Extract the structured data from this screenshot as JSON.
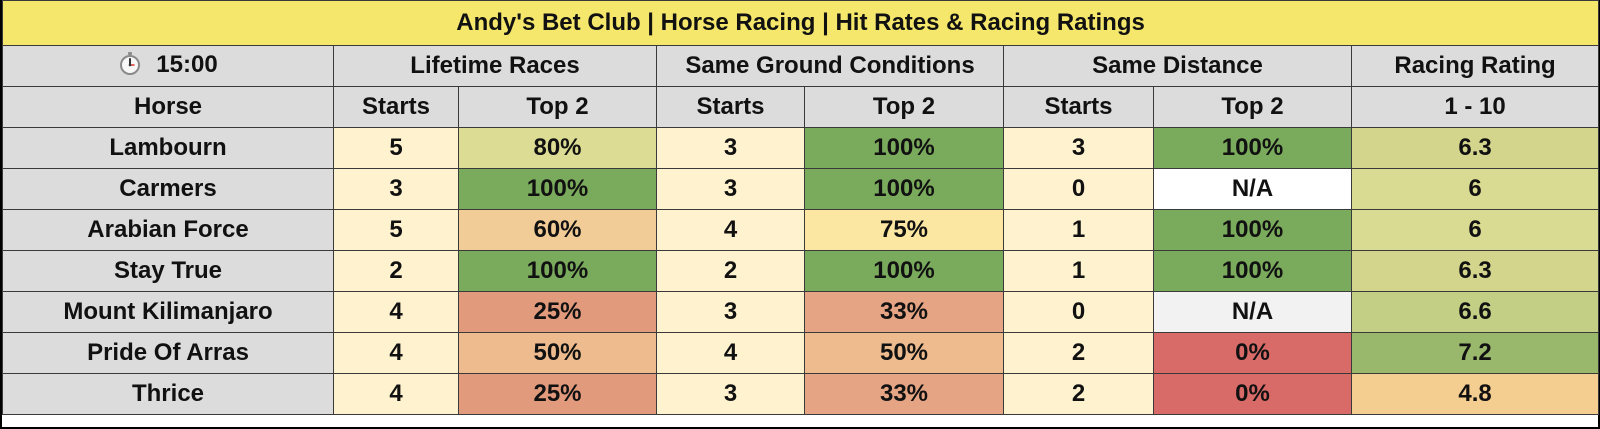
{
  "title": "Andy's Bet Club | Horse Racing | Hit Rates & Racing Ratings",
  "race_time": "15:00",
  "race_time_icon": "stopwatch-icon",
  "group_headers": {
    "lifetime": "Lifetime Races",
    "ground": "Same Ground Conditions",
    "distance": "Same Distance",
    "rating": "Racing Rating"
  },
  "sub_headers": {
    "horse": "Horse",
    "starts": "Starts",
    "top2": "Top 2",
    "rating_range": "1 - 10"
  },
  "rows": [
    {
      "horse": "Lambourn",
      "lt_starts": "5",
      "lt_top2": "80%",
      "gr_starts": "3",
      "gr_top2": "100%",
      "di_starts": "3",
      "di_top2": "100%",
      "rating": "6.3"
    },
    {
      "horse": "Carmers",
      "lt_starts": "3",
      "lt_top2": "100%",
      "gr_starts": "3",
      "gr_top2": "100%",
      "di_starts": "0",
      "di_top2": "N/A",
      "rating": "6"
    },
    {
      "horse": "Arabian Force",
      "lt_starts": "5",
      "lt_top2": "60%",
      "gr_starts": "4",
      "gr_top2": "75%",
      "di_starts": "1",
      "di_top2": "100%",
      "rating": "6"
    },
    {
      "horse": "Stay True",
      "lt_starts": "2",
      "lt_top2": "100%",
      "gr_starts": "2",
      "gr_top2": "100%",
      "di_starts": "1",
      "di_top2": "100%",
      "rating": "6.3"
    },
    {
      "horse": "Mount Kilimanjaro",
      "lt_starts": "4",
      "lt_top2": "25%",
      "gr_starts": "3",
      "gr_top2": "33%",
      "di_starts": "0",
      "di_top2": "N/A",
      "rating": "6.6"
    },
    {
      "horse": "Pride Of Arras",
      "lt_starts": "4",
      "lt_top2": "50%",
      "gr_starts": "4",
      "gr_top2": "50%",
      "di_starts": "2",
      "di_top2": "0%",
      "rating": "7.2"
    },
    {
      "horse": "Thrice",
      "lt_starts": "4",
      "lt_top2": "25%",
      "gr_starts": "3",
      "gr_top2": "33%",
      "di_starts": "2",
      "di_top2": "0%",
      "rating": "4.8"
    }
  ],
  "cell_colors": [
    {
      "lt_top2": "#dcdc94",
      "gr_top2": "#7aaa5c",
      "di_top2": "#7aaa5c",
      "rating": "#d4d58c"
    },
    {
      "lt_top2": "#7aaa5c",
      "gr_top2": "#7aaa5c",
      "di_top2": "#ffffff",
      "rating": "#dadb93"
    },
    {
      "lt_top2": "#f2cc96",
      "gr_top2": "#fbe6a2",
      "di_top2": "#7aaa5c",
      "rating": "#dadb93"
    },
    {
      "lt_top2": "#7aaa5c",
      "gr_top2": "#7aaa5c",
      "di_top2": "#7aaa5c",
      "rating": "#d4d58c"
    },
    {
      "lt_top2": "#e29a7d",
      "gr_top2": "#e5a483",
      "di_top2": "#f2f2f2",
      "rating": "#c3cf85"
    },
    {
      "lt_top2": "#eebb8e",
      "gr_top2": "#eebb8e",
      "di_top2": "#d86a68",
      "rating": "#9ab86c"
    },
    {
      "lt_top2": "#e29a7d",
      "gr_top2": "#e5a483",
      "di_top2": "#d86a68",
      "rating": "#f4cd90"
    }
  ]
}
